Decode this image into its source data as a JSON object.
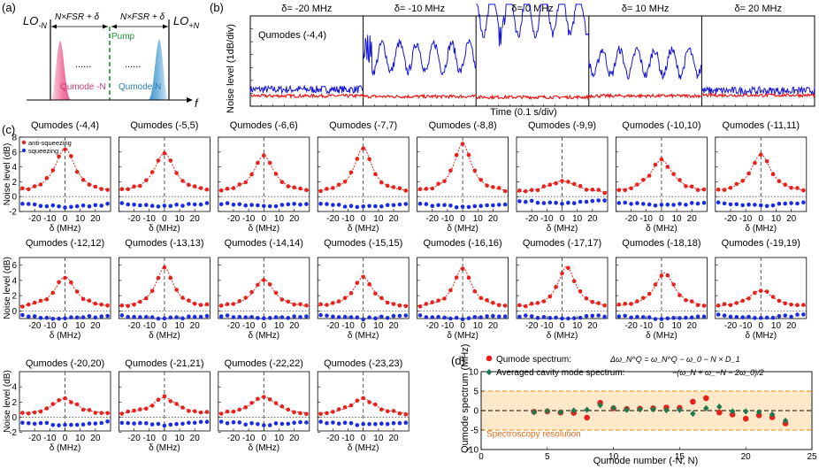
{
  "panel_labels": {
    "a": "(a)",
    "b": "(b)",
    "c": "(c)",
    "d": "(d)"
  },
  "colors": {
    "anti": "#e8211c",
    "sq": "#1a2be6",
    "fit": "#e8211c",
    "blue_trace": "#1515d6",
    "red_trace": "#ee1111",
    "pump": "#1a9a3a",
    "pink": "#e8578a",
    "cyan": "#3b93c9",
    "band": "#fde8c9",
    "band_edge": "#f0a030",
    "green": "#1e7a4c"
  },
  "schematic": {
    "lo_left": "LO",
    "lo_left_sub": "-N",
    "lo_right": "LO",
    "lo_right_sub": "+N",
    "spacing_left": "N×FSR + δ",
    "spacing_right": "N×FSR + δ",
    "pump": "Pump",
    "dots": "......",
    "qumode_left": "Qumode -N",
    "qumode_right": "Qumode N",
    "axis": "f"
  },
  "chart_data": [
    {
      "id": "b",
      "type": "line",
      "ylabel": "Noise level (1dB/div)",
      "xlabel": "Time (0.1 s/div)",
      "annotation": "Qumodes (-4,4)",
      "segment_titles": [
        "δ= -20 MHz",
        "δ= -10 MHz",
        "δ= 0 MHz",
        "δ= 10 MHz",
        "δ= 20 MHz"
      ],
      "series": [
        {
          "name": "anti-squeezing trace",
          "color": "blue",
          "segment_levels_dB": [
            0.3,
            2.8,
            6.2,
            2.4,
            0.2
          ],
          "segment_oscillation_dB": [
            0.3,
            2.2,
            3.4,
            2.0,
            0.3
          ]
        },
        {
          "name": "squeezing trace",
          "color": "red",
          "segment_levels_dB": [
            -0.2,
            -0.25,
            -0.3,
            -0.2,
            -0.15
          ]
        }
      ],
      "ylim": [
        -1,
        6
      ]
    },
    {
      "id": "c",
      "type": "scatter",
      "xlabel": "δ (MHz)",
      "ylabel": "Noise level (dB)",
      "legend": [
        "anti-squeezing",
        "squeezing"
      ],
      "xlim": [
        -30,
        30
      ],
      "xticks": [
        "-20",
        "-10",
        "0",
        "10",
        "20"
      ],
      "delta_values": [
        -28,
        -24,
        -20,
        -16,
        -12,
        -8,
        -4,
        0,
        4,
        8,
        12,
        16,
        20,
        24,
        28
      ],
      "rows": [
        {
          "ylim": [
            -2,
            8
          ],
          "yticks": [
            "-2",
            "0",
            "2",
            "4",
            "6",
            "8"
          ]
        },
        {
          "ylim": [
            -1,
            7
          ],
          "yticks": [
            "0",
            "2",
            "4",
            "6"
          ]
        },
        {
          "ylim": [
            -1.8,
            6
          ],
          "yticks": [
            "-2",
            "0",
            "2",
            "4"
          ]
        }
      ],
      "subplots": [
        {
          "title": "Qumodes (-4,4)",
          "peak": 6.0,
          "width": 8,
          "sq": -1.4,
          "base": 0.5,
          "center": 0
        },
        {
          "title": "Qumodes (-5,5)",
          "peak": 5.4,
          "width": 8,
          "sq": -1.3,
          "base": 0.5,
          "center": 0
        },
        {
          "title": "Qumodes (-6,6)",
          "peak": 5.0,
          "width": 8,
          "sq": -1.3,
          "base": 0.5,
          "center": 0
        },
        {
          "title": "Qumodes (-7,7)",
          "peak": 6.1,
          "width": 7,
          "sq": -1.4,
          "base": 0.5,
          "center": 0
        },
        {
          "title": "Qumodes (-8,8)",
          "peak": 6.6,
          "width": 7,
          "sq": -1.4,
          "base": 0.5,
          "center": 0
        },
        {
          "title": "Qumodes (-9,9)",
          "peak": 1.7,
          "width": 12,
          "sq": -0.9,
          "base": 0.4,
          "center": 0
        },
        {
          "title": "Qumodes (-10,10)",
          "peak": 4.4,
          "width": 9,
          "sq": -1.2,
          "base": 0.5,
          "center": 0
        },
        {
          "title": "Qumodes (-11,11)",
          "peak": 5.2,
          "width": 8,
          "sq": -1.2,
          "base": 0.5,
          "center": 0
        },
        {
          "title": "Qumodes (-12,12)",
          "peak": 4.1,
          "width": 8,
          "sq": -1.0,
          "base": 0.4,
          "center": 0
        },
        {
          "title": "Qumodes (-13,13)",
          "peak": 5.3,
          "width": 7,
          "sq": -1.0,
          "base": 0.4,
          "center": 0
        },
        {
          "title": "Qumodes (-14,14)",
          "peak": 3.8,
          "width": 8,
          "sq": -1.0,
          "base": 0.4,
          "center": 0
        },
        {
          "title": "Qumodes (-15,15)",
          "peak": 4.0,
          "width": 8,
          "sq": -1.0,
          "base": 0.4,
          "center": 0
        },
        {
          "title": "Qumodes (-16,16)",
          "peak": 5.3,
          "width": 7,
          "sq": -1.0,
          "base": 0.4,
          "center": 0
        },
        {
          "title": "Qumodes (-17,17)",
          "peak": 5.4,
          "width": 7,
          "sq": -1.0,
          "base": 0.4,
          "center": 3
        },
        {
          "title": "Qumodes (-18,18)",
          "peak": 4.6,
          "width": 8,
          "sq": -1.0,
          "base": 0.4,
          "center": 2
        },
        {
          "title": "Qumodes (-19,19)",
          "peak": 2.3,
          "width": 10,
          "sq": -0.9,
          "base": 0.4,
          "center": 0
        },
        {
          "title": "Qumodes (-20,20)",
          "peak": 2.1,
          "width": 10,
          "sq": -1.0,
          "base": 0.3,
          "center": 0
        },
        {
          "title": "Qumodes (-21,21)",
          "peak": 2.3,
          "width": 10,
          "sq": -1.0,
          "base": 0.3,
          "center": 0
        },
        {
          "title": "Qumodes (-22,22)",
          "peak": 2.4,
          "width": 10,
          "sq": -1.0,
          "base": 0.3,
          "center": 0
        },
        {
          "title": "Qumodes (-23,23)",
          "peak": 2.1,
          "width": 10,
          "sq": -1.0,
          "base": 0.3,
          "center": 0
        }
      ]
    },
    {
      "id": "d",
      "type": "scatter",
      "xlabel": "Qumode number (-N, N)",
      "ylabel": "Qumode spectrum (MHz)",
      "xlim": [
        0,
        25
      ],
      "ylim": [
        -10,
        10
      ],
      "xticks": [
        "0",
        "5",
        "10",
        "15",
        "20",
        "25"
      ],
      "yticks": [
        "-10",
        "-5",
        "0",
        "5",
        "10"
      ],
      "band_mhz": [
        -5,
        5
      ],
      "band_label": "Spectroscopy resolution",
      "series": [
        {
          "name": "Qumode spectrum",
          "formula": "Δω_N^Q = ω_N^Q − ω_0 − N × D_1",
          "x": [
            4,
            5,
            6,
            7,
            8,
            9,
            10,
            11,
            12,
            13,
            14,
            15,
            16,
            17,
            18,
            19,
            20,
            21,
            22,
            23
          ],
          "y": [
            -0.3,
            -0.2,
            -0.5,
            -0.6,
            -1.8,
            2.0,
            0.6,
            0.4,
            0.5,
            0.6,
            0.8,
            0.7,
            2.3,
            3.2,
            -0.5,
            -1.0,
            -2.1,
            -1.2,
            -1.7,
            -3.3
          ]
        },
        {
          "name": "Averaged cavity mode spectrum",
          "formula": "−(ω_N + ω_−N − 2ω_0)/2",
          "x": [
            4,
            5,
            6,
            7,
            8,
            9,
            10,
            11,
            12,
            13,
            14,
            15,
            16,
            17,
            18,
            19,
            20,
            21,
            22,
            23
          ],
          "y": [
            -0.4,
            -0.1,
            -0.4,
            0.0,
            0.2,
            1.4,
            0.7,
            0.2,
            0.3,
            0.3,
            0.1,
            0.2,
            -0.8,
            0.6,
            1.0,
            -0.2,
            -0.2,
            -0.4,
            -1.0,
            -2.6
          ]
        }
      ]
    }
  ]
}
